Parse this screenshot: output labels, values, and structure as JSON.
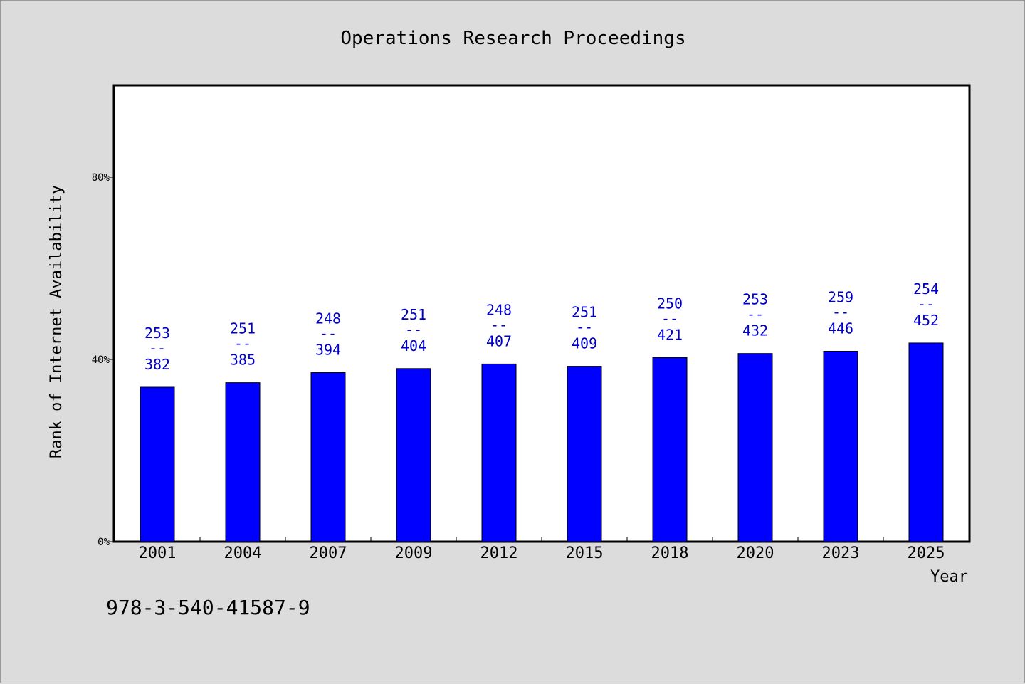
{
  "chart_data": {
    "type": "bar",
    "title": "Operations Research Proceedings",
    "xlabel": "Year",
    "ylabel": "Rank of Internet Availability",
    "categories": [
      "2001",
      "2004",
      "2007",
      "2009",
      "2012",
      "2015",
      "2018",
      "2020",
      "2023",
      "2025"
    ],
    "values": [
      33.9,
      34.9,
      37.1,
      38.0,
      39.0,
      38.5,
      40.4,
      41.3,
      41.8,
      43.6
    ],
    "value_unit": "%",
    "ylim": [
      0,
      100
    ],
    "yticks": [
      0,
      40,
      80
    ],
    "ytick_labels": [
      "0%",
      "40%",
      "80%"
    ],
    "data_labels": [
      {
        "top": "253",
        "sep": "--",
        "bottom": "382"
      },
      {
        "top": "251",
        "sep": "--",
        "bottom": "385"
      },
      {
        "top": "248",
        "sep": "--",
        "bottom": "394"
      },
      {
        "top": "251",
        "sep": "--",
        "bottom": "404"
      },
      {
        "top": "248",
        "sep": "--",
        "bottom": "407"
      },
      {
        "top": "251",
        "sep": "--",
        "bottom": "409"
      },
      {
        "top": "250",
        "sep": "--",
        "bottom": "421"
      },
      {
        "top": "253",
        "sep": "--",
        "bottom": "432"
      },
      {
        "top": "259",
        "sep": "--",
        "bottom": "446"
      },
      {
        "top": "254",
        "sep": "--",
        "bottom": "452"
      }
    ],
    "bar_color": "#0000ff",
    "label_color": "#0000cc",
    "background_color": "#dcdcdc",
    "plot_background": "#ffffff",
    "grid": false
  },
  "footnote": "978-3-540-41587-9"
}
